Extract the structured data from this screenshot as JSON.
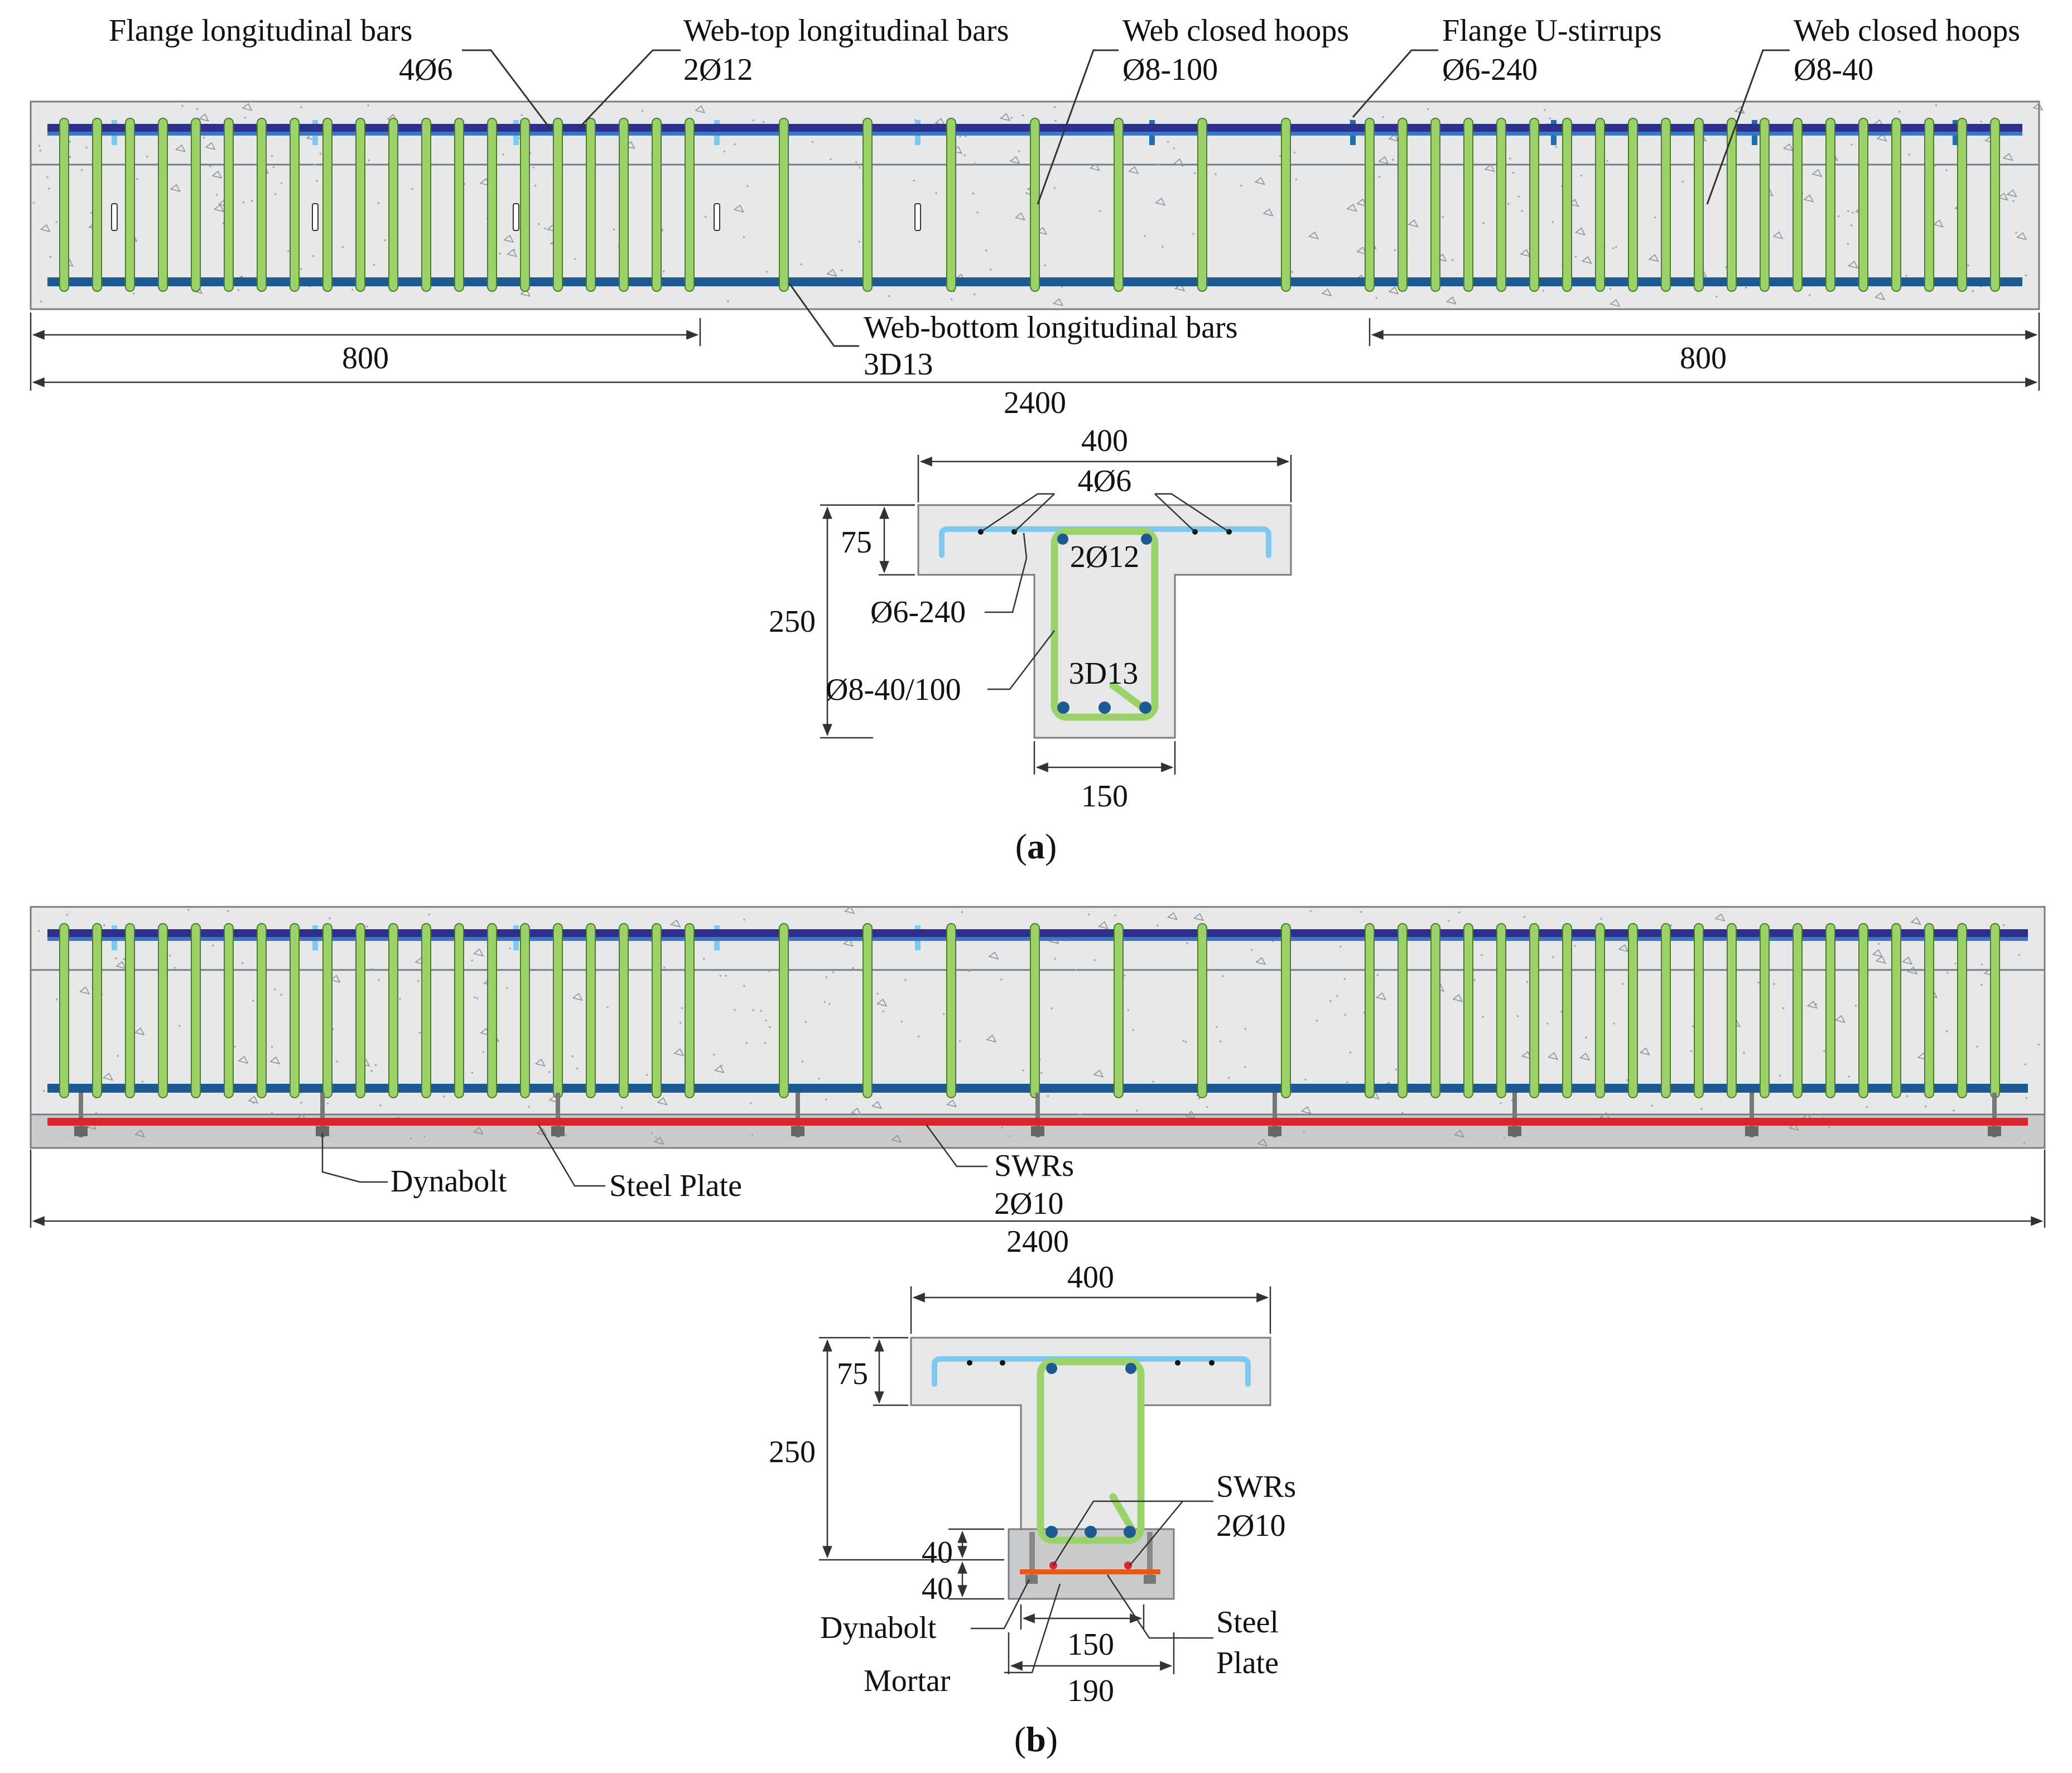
{
  "panel_a": {
    "label_open": "(",
    "label_letter": "a",
    "label_close": ")",
    "elevation": {
      "callouts": [
        {
          "line1": "Flange longitudinal bars",
          "line2": "4Ø6"
        },
        {
          "line1": "Web-top longitudinal bars",
          "line2": "2Ø12"
        },
        {
          "line1": "Web closed hoops",
          "line2": "Ø8-100"
        },
        {
          "line1": "Flange U-stirrups",
          "line2": "Ø6-240"
        },
        {
          "line1": "Web closed hoops",
          "line2": "Ø8-40"
        },
        {
          "line1": "Web-bottom longitudinal bars",
          "line2": "3D13"
        }
      ],
      "dim_left": "800",
      "dim_right": "800",
      "dim_total": "2400"
    },
    "section": {
      "flange_width": "400",
      "flange_bars": "4Ø6",
      "flange_depth": "75",
      "top_bars": "2Ø12",
      "total_depth": "250",
      "stirrup": "Ø6-240",
      "hoops": "Ø8-40/100",
      "bottom_bars": "3D13",
      "web_width": "150"
    }
  },
  "panel_b": {
    "label_open": "(",
    "label_letter": "b",
    "label_close": ")",
    "elevation": {
      "dynabolt": "Dynabolt",
      "steel_plate": "Steel Plate",
      "swrs_line1": "SWRs",
      "swrs_line2": "2Ø10",
      "dim_total": "2400"
    },
    "section": {
      "flange_width": "400",
      "flange_depth": "75",
      "total_depth": "250",
      "swrs_line1": "SWRs",
      "swrs_line2": "2Ø10",
      "dim_40_top": "40",
      "dim_40_bottom": "40",
      "dynabolt": "Dynabolt",
      "steel_line1": "Steel",
      "steel_line2": "Plate",
      "web_width": "150",
      "mortar": "Mortar",
      "mortar_width": "190"
    }
  },
  "colors": {
    "concrete": "#e6e8ea",
    "concrete_edge": "#7a7d80",
    "hoop_green": "#9bd36a",
    "hoop_green_edge": "#4f7a2c",
    "top_bar_purple": "#2d2f8a",
    "light_blue": "#7fc8f0",
    "bottom_bar_blue": "#1d5a91",
    "steel_plate_red": "#d9252b",
    "mortar_grey": "#c9cbcd",
    "dim_line": "#333333"
  }
}
